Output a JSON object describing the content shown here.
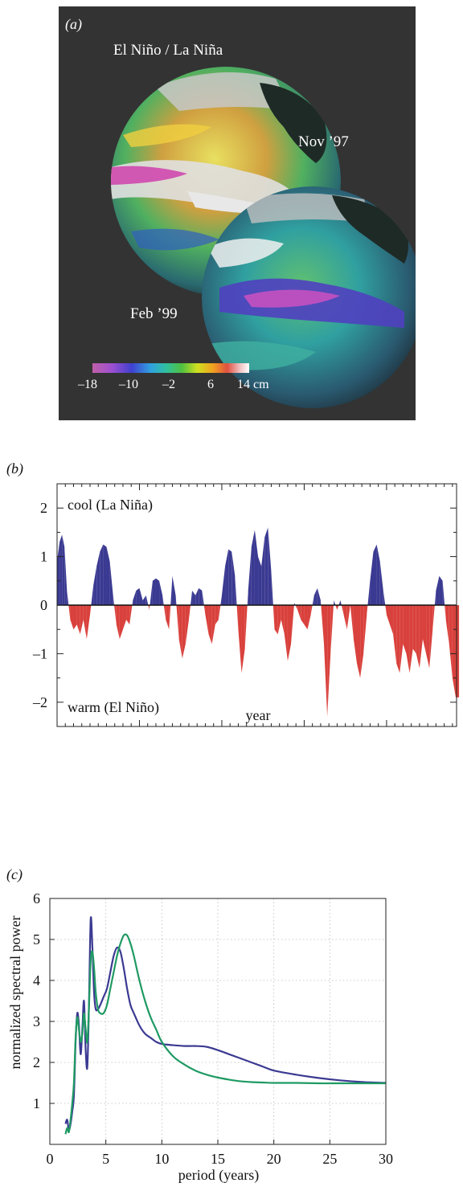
{
  "panel_a": {
    "label": "(a)",
    "title": "El Niño / La Niña",
    "date1": "Nov ’97",
    "date2": "Feb ’99",
    "colorbar_ticks": [
      "–18",
      "–10",
      "–2",
      "6",
      "14 cm"
    ],
    "colorbar_colors": [
      "#c060a8",
      "#a050d0",
      "#4040d0",
      "#30a0e0",
      "#30c0a0",
      "#50c040",
      "#d0e020",
      "#f0a020",
      "#e05040",
      "#f0c0c0",
      "#ffffff"
    ],
    "background_color": "#333333"
  },
  "panel_b": {
    "label": "(b)",
    "cool_label": "cool (La Niña)",
    "warm_label": "warm (El Niño)",
    "xlabel": "year",
    "cool_color": "#3b3a92",
    "warm_color": "#d9413c"
  },
  "panel_c": {
    "label": "(c)",
    "xlabel": "period (years)",
    "ylabel": "normalized spectral power",
    "series_colors": [
      "#3b3a92",
      "#1f9a63"
    ]
  },
  "chart_data": [
    {
      "type": "area",
      "xlim": [
        1950,
        1998.5
      ],
      "ylim": [
        -2.5,
        2.5
      ],
      "x_ticks": [
        1950,
        1960,
        1970,
        1980,
        1990
      ],
      "y_ticks": [
        -2,
        -1,
        0,
        1,
        2
      ],
      "y_tick_labels": [
        "–2",
        "–1",
        "0",
        "1",
        "2"
      ],
      "grid": false,
      "series": [
        {
          "x": [
            1950.0,
            1950.3,
            1950.6,
            1950.9,
            1951.2,
            1951.6,
            1952.0,
            1952.4,
            1952.8,
            1953.2,
            1953.6,
            1954.0,
            1954.4,
            1954.8,
            1955.2,
            1955.6,
            1956.0,
            1956.4,
            1956.8,
            1957.2,
            1957.6,
            1958.0,
            1958.4,
            1958.8,
            1959.2,
            1959.6,
            1960.0,
            1960.4,
            1960.8,
            1961.2,
            1961.6,
            1962.0,
            1962.4,
            1962.8,
            1963.2,
            1963.6,
            1964.0,
            1964.4,
            1964.8,
            1965.2,
            1965.6,
            1966.0,
            1966.4,
            1966.8,
            1967.2,
            1967.6,
            1968.0,
            1968.4,
            1968.8,
            1969.2,
            1969.6,
            1970.0,
            1970.4,
            1970.8,
            1971.2,
            1971.6,
            1972.0,
            1972.4,
            1972.8,
            1973.2,
            1973.6,
            1974.0,
            1974.4,
            1974.8,
            1975.2,
            1975.6,
            1976.0,
            1976.4,
            1976.8,
            1977.2,
            1977.6,
            1978.0,
            1978.4,
            1978.8,
            1979.2,
            1979.6,
            1980.0,
            1980.4,
            1980.8,
            1981.2,
            1981.6,
            1982.0,
            1982.4,
            1982.8,
            1983.2,
            1983.6,
            1984.0,
            1984.4,
            1984.8,
            1985.2,
            1985.6,
            1986.0,
            1986.4,
            1986.8,
            1987.2,
            1987.6,
            1988.0,
            1988.4,
            1988.8,
            1989.2,
            1989.6,
            1990.0,
            1990.4,
            1990.8,
            1991.2,
            1991.6,
            1992.0,
            1992.4,
            1992.8,
            1993.2,
            1993.6,
            1994.0,
            1994.4,
            1994.8,
            1995.2,
            1995.6,
            1996.0,
            1996.4,
            1996.8,
            1997.2,
            1997.6,
            1998.0,
            1998.4
          ],
          "y": [
            0.9,
            1.3,
            1.45,
            1.2,
            0.3,
            -0.3,
            -0.5,
            -0.4,
            -0.6,
            -0.3,
            -0.7,
            -0.2,
            0.4,
            0.8,
            1.1,
            1.25,
            1.2,
            0.9,
            0.2,
            -0.4,
            -0.7,
            -0.5,
            -0.3,
            -0.4,
            0.1,
            0.3,
            0.35,
            0.1,
            0.2,
            -0.1,
            0.5,
            0.55,
            0.5,
            0.2,
            -0.3,
            -0.5,
            0.6,
            0.2,
            -0.7,
            -1.1,
            -0.8,
            -0.3,
            0.3,
            0.2,
            0.35,
            0.3,
            -0.2,
            -0.6,
            -0.8,
            -0.4,
            -0.3,
            0.2,
            0.8,
            1.15,
            1.1,
            0.6,
            -0.5,
            -1.4,
            -0.9,
            0.3,
            1.2,
            1.55,
            1.0,
            0.8,
            1.4,
            1.6,
            0.7,
            -0.5,
            -0.6,
            -0.3,
            -0.6,
            -1.15,
            -0.8,
            0.05,
            -0.1,
            -0.3,
            -0.4,
            -0.5,
            -0.2,
            0.2,
            0.35,
            0.1,
            -0.8,
            -2.3,
            -1.0,
            0.1,
            -0.1,
            0.1,
            -0.2,
            -0.5,
            0.0,
            -0.7,
            -1.2,
            -1.5,
            -1.0,
            -0.2,
            0.5,
            1.1,
            1.25,
            0.9,
            0.3,
            -0.2,
            -0.4,
            -0.6,
            -1.2,
            -1.4,
            -0.8,
            -1.0,
            -1.4,
            -0.9,
            -1.0,
            -1.3,
            -0.7,
            -1.0,
            -1.3,
            -0.5,
            0.3,
            0.6,
            0.5,
            -0.3,
            -0.8,
            -1.5,
            -1.9
          ]
        }
      ]
    },
    {
      "type": "line",
      "xlim": [
        0,
        30
      ],
      "ylim": [
        0,
        6
      ],
      "x_ticks": [
        0,
        5,
        10,
        15,
        20,
        25,
        30
      ],
      "y_ticks": [
        1,
        2,
        3,
        4,
        5,
        6
      ],
      "grid": true,
      "series": [
        {
          "x": [
            1.4,
            1.55,
            1.7,
            1.85,
            2.0,
            2.15,
            2.3,
            2.45,
            2.6,
            2.75,
            2.9,
            3.05,
            3.2,
            3.35,
            3.5,
            3.65,
            3.8,
            3.95,
            4.1,
            4.3,
            4.5,
            4.8,
            5.1,
            5.4,
            5.7,
            6.0,
            6.3,
            6.6,
            6.9,
            7.2,
            7.5,
            8.0,
            8.5,
            9.0,
            9.5,
            10.0,
            11.0,
            12.0,
            13.0,
            14.0,
            15.0,
            16.0,
            17.0,
            18.0,
            19.0,
            20.0,
            22.0,
            24.0,
            26.0,
            28.0,
            30.0
          ],
          "y": [
            0.5,
            0.6,
            0.35,
            0.5,
            0.8,
            1.2,
            2.5,
            3.2,
            2.9,
            2.2,
            2.8,
            3.5,
            2.3,
            1.9,
            3.5,
            5.5,
            4.8,
            3.7,
            3.3,
            3.3,
            3.4,
            3.6,
            3.8,
            4.2,
            4.6,
            4.8,
            4.7,
            4.3,
            3.8,
            3.4,
            3.2,
            2.9,
            2.7,
            2.6,
            2.5,
            2.45,
            2.42,
            2.4,
            2.4,
            2.38,
            2.3,
            2.2,
            2.1,
            2.0,
            1.9,
            1.8,
            1.7,
            1.62,
            1.56,
            1.52,
            1.5
          ]
        },
        {
          "x": [
            1.4,
            1.55,
            1.7,
            1.85,
            2.0,
            2.15,
            2.3,
            2.45,
            2.6,
            2.75,
            2.9,
            3.05,
            3.2,
            3.35,
            3.5,
            3.65,
            3.8,
            3.95,
            4.1,
            4.3,
            4.5,
            4.8,
            5.1,
            5.4,
            5.7,
            6.0,
            6.3,
            6.6,
            6.9,
            7.2,
            7.5,
            8.0,
            8.5,
            9.0,
            9.5,
            10.0,
            11.0,
            12.0,
            13.0,
            14.0,
            15.0,
            16.0,
            17.0,
            18.0,
            19.0,
            20.0,
            22.0,
            24.0,
            26.0,
            28.0,
            30.0
          ],
          "y": [
            0.25,
            0.4,
            0.3,
            0.6,
            1.0,
            1.5,
            2.6,
            3.1,
            2.8,
            2.5,
            2.7,
            3.2,
            2.8,
            2.5,
            3.4,
            4.5,
            4.7,
            4.3,
            3.7,
            3.3,
            3.2,
            3.2,
            3.4,
            3.8,
            4.2,
            4.6,
            4.9,
            5.1,
            5.1,
            4.9,
            4.6,
            4.0,
            3.5,
            3.1,
            2.8,
            2.5,
            2.15,
            1.95,
            1.8,
            1.7,
            1.63,
            1.58,
            1.54,
            1.52,
            1.51,
            1.5,
            1.5,
            1.49,
            1.49,
            1.49,
            1.49
          ]
        }
      ]
    }
  ]
}
